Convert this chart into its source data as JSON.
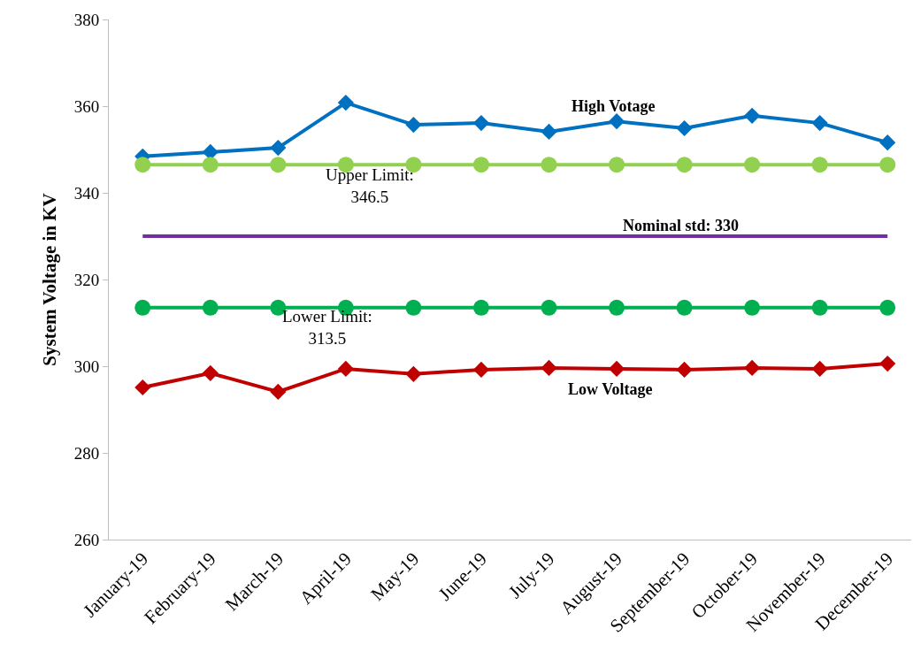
{
  "chart_data": {
    "type": "line",
    "ylabel": "System Voltage in KV",
    "categories": [
      "January-19",
      "February-19",
      "March-19",
      "April-19",
      "May-19",
      "June-19",
      "July-19",
      "August-19",
      "September-19",
      "October-19",
      "November-19",
      "December-19"
    ],
    "series": [
      {
        "color": "#0070c0",
        "marker": "diamond",
        "values": [
          348.4,
          349.4,
          350.4,
          360.8,
          355.7,
          356.1,
          354.1,
          356.5,
          354.9,
          357.8,
          356.1,
          351.6
        ]
      },
      {
        "color": "#92d050",
        "marker": "circle",
        "values": [
          346.5,
          346.5,
          346.5,
          346.5,
          346.5,
          346.5,
          346.5,
          346.5,
          346.5,
          346.5,
          346.5,
          346.5
        ]
      },
      {
        "color": "#7030a0",
        "marker": "none",
        "values": [
          330,
          330,
          330,
          330,
          330,
          330,
          330,
          330,
          330,
          330,
          330,
          330
        ]
      },
      {
        "color": "#00b050",
        "marker": "circle",
        "values": [
          313.5,
          313.5,
          313.5,
          313.5,
          313.5,
          313.5,
          313.5,
          313.5,
          313.5,
          313.5,
          313.5,
          313.5
        ]
      },
      {
        "color": "#c00000",
        "marker": "diamond",
        "values": [
          295.1,
          298.4,
          294.1,
          299.4,
          298.2,
          299.2,
          299.6,
          299.4,
          299.2,
          299.6,
          299.4,
          300.6
        ]
      }
    ],
    "ylim": [
      260,
      380
    ],
    "yticks": [
      260,
      280,
      300,
      320,
      340,
      360,
      380
    ],
    "grid": false,
    "annotations": [
      "High Votage",
      "Upper Limit:\n346.5",
      "Nominal std: 330",
      "Lower Limit:\n313.5",
      "Low Voltage"
    ]
  }
}
